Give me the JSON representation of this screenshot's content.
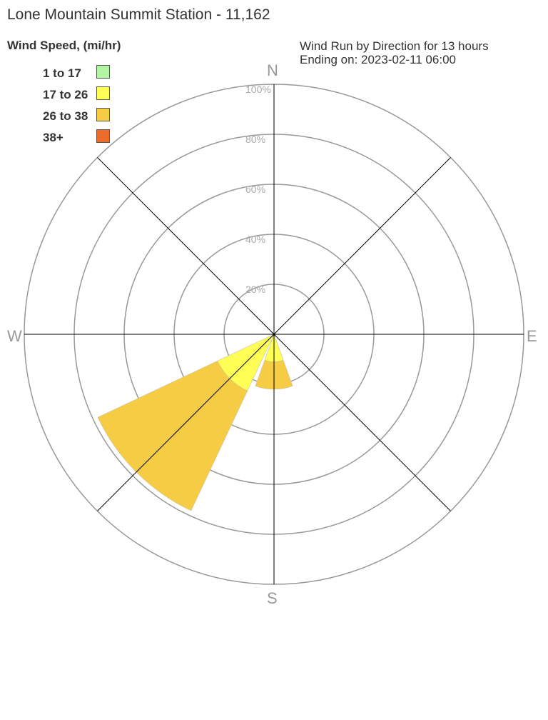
{
  "title": "Lone Mountain Summit Station - 11,162",
  "legend_title": "Wind Speed, (mi/hr)",
  "subtitle_line1": "Wind Run by Direction for 13 hours",
  "subtitle_line2": "Ending on: 2023-02-11 06:00",
  "chart_data": {
    "type": "wind-rose",
    "directions": [
      "N",
      "NE",
      "E",
      "SE",
      "S",
      "SW",
      "W",
      "NW"
    ],
    "compass_labels": [
      "N",
      "E",
      "S",
      "W"
    ],
    "radial_ticks": [
      "20%",
      "40%",
      "60%",
      "80%",
      "100%"
    ],
    "rmax": 100,
    "series": [
      {
        "name": "1 to 17",
        "color": "#b3f5a3",
        "values": [
          0,
          0,
          0,
          0,
          0,
          0,
          0,
          0
        ]
      },
      {
        "name": "17 to 26",
        "color": "#ffff55",
        "values": [
          0,
          0,
          0,
          0,
          11,
          25,
          0,
          0
        ]
      },
      {
        "name": "26 to 38",
        "color": "#f5cc44",
        "values": [
          0,
          0,
          0,
          0,
          11,
          53,
          0,
          0
        ]
      },
      {
        "name": "38+",
        "color": "#ec6c2c",
        "values": [
          0,
          0,
          0,
          0,
          0,
          0,
          0,
          0
        ]
      }
    ]
  }
}
